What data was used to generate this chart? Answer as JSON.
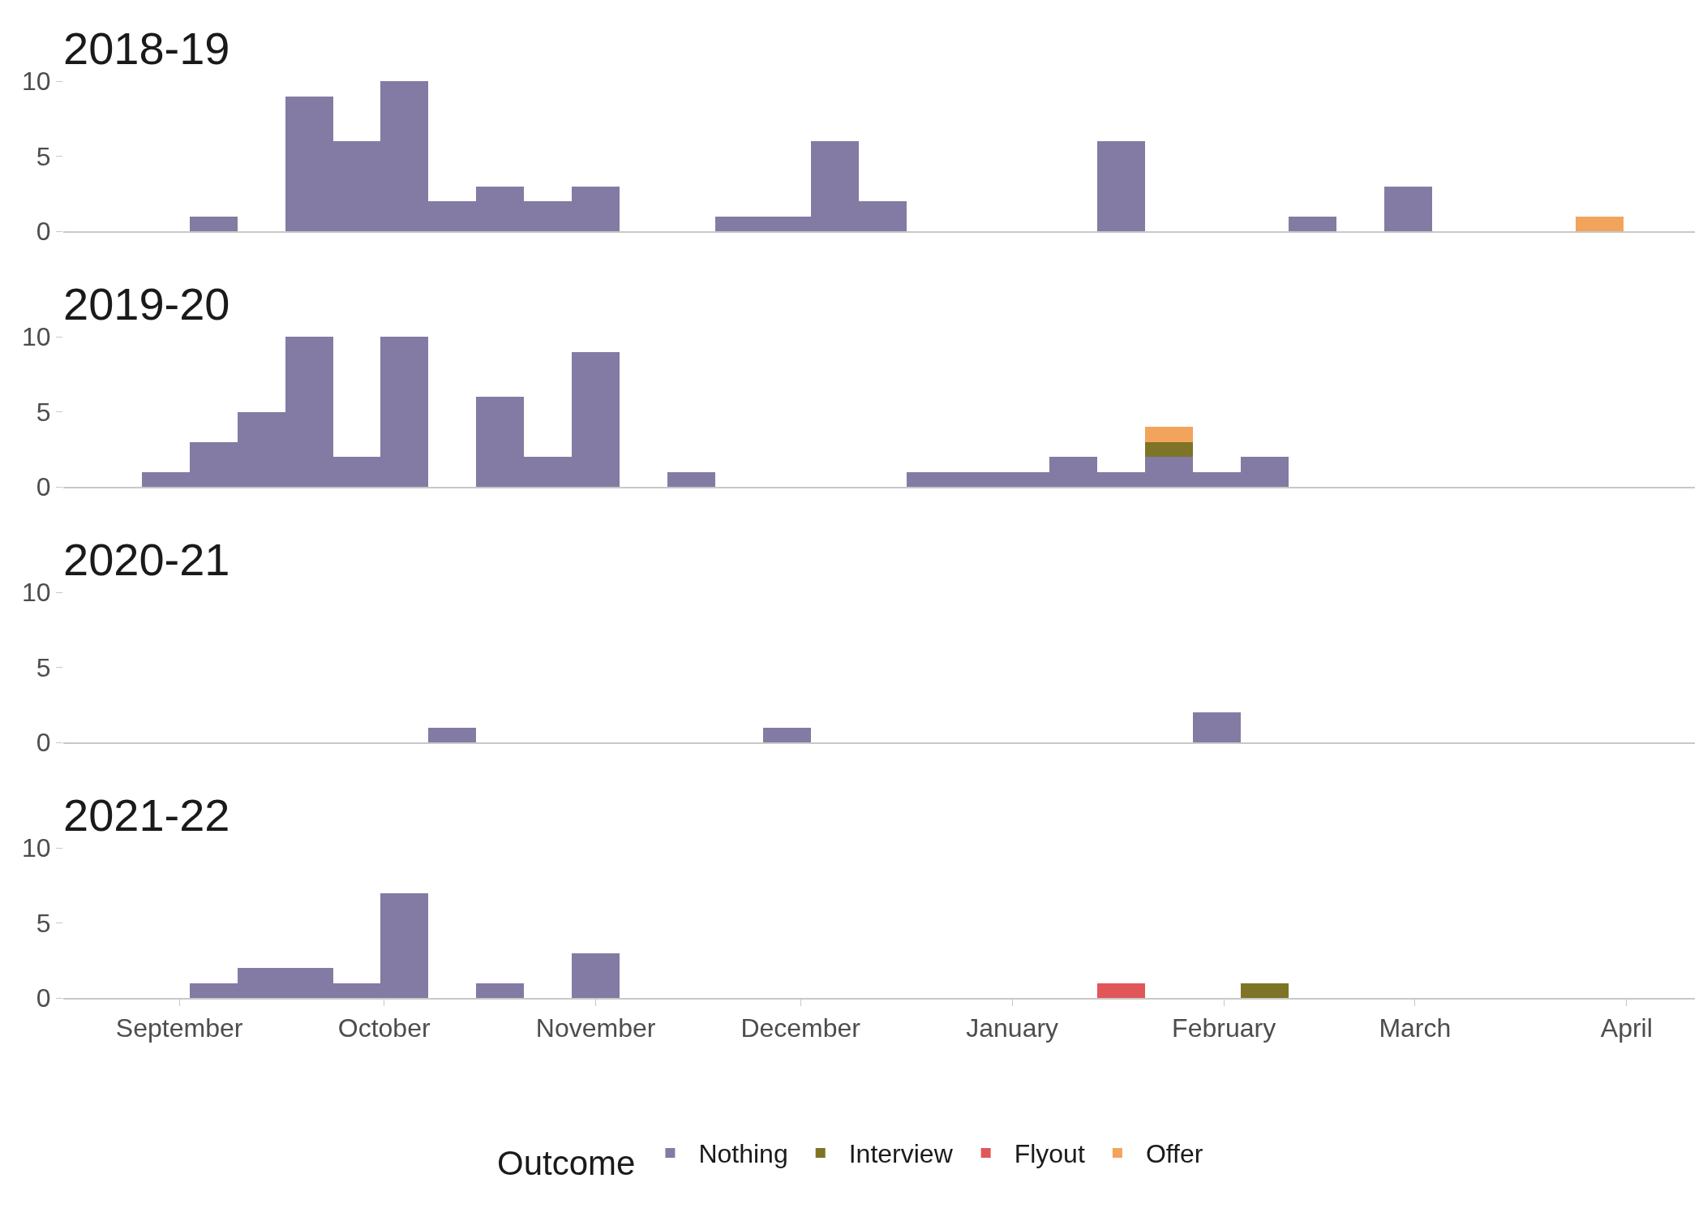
{
  "chart_data": [
    {
      "type": "bar",
      "title": "2018-19",
      "tick_labels": "y",
      "x": [
        "2018-08-30",
        "2018-09-06",
        "2018-09-13",
        "2018-09-20",
        "2018-09-27",
        "2018-10-04",
        "2018-10-11",
        "2018-10-18",
        "2018-10-25",
        "2018-11-01",
        "2018-11-08",
        "2018-11-15",
        "2018-11-22",
        "2018-11-29",
        "2018-12-06",
        "2018-12-13",
        "2018-12-20",
        "2018-12-27",
        "2019-01-03",
        "2019-01-10",
        "2019-01-17",
        "2019-01-24",
        "2019-01-31",
        "2019-02-07",
        "2019-02-14",
        "2019-02-21",
        "2019-02-28",
        "2019-03-07",
        "2019-03-14",
        "2019-03-21",
        "2019-03-28"
      ],
      "series": [
        {
          "color": "#837ba3",
          "values": [
            0,
            1,
            0,
            9,
            6,
            10,
            2,
            3,
            2,
            3,
            0,
            0,
            1,
            1,
            6,
            2,
            0,
            0,
            0,
            0,
            6,
            0,
            0,
            0,
            1,
            0,
            3,
            0,
            0,
            0,
            0
          ]
        },
        {
          "color": "#f3a45c",
          "values": [
            0,
            0,
            0,
            0,
            0,
            0,
            0,
            0,
            0,
            0,
            0,
            0,
            0,
            0,
            0,
            0,
            0,
            0,
            0,
            0,
            0,
            0,
            0,
            0,
            0,
            0,
            0,
            0,
            0,
            0,
            1
          ]
        }
      ],
      "xlim": [
        "2018-08-15",
        "2019-04-11"
      ],
      "ylim": [
        0,
        10
      ],
      "yticks": [
        0,
        5,
        10
      ]
    },
    {
      "type": "bar",
      "title": "2019-20",
      "stacked": true,
      "tick_labels": "y",
      "x": [
        "2018-08-30",
        "2018-09-06",
        "2018-09-13",
        "2018-09-20",
        "2018-09-27",
        "2018-10-04",
        "2018-10-11",
        "2018-10-18",
        "2018-10-25",
        "2018-11-01",
        "2018-11-08",
        "2018-11-15",
        "2018-11-22",
        "2018-11-29",
        "2018-12-06",
        "2018-12-13",
        "2018-12-20",
        "2018-12-27",
        "2019-01-03",
        "2019-01-10",
        "2019-01-17",
        "2019-01-24",
        "2019-01-31",
        "2019-02-07",
        "2019-02-14",
        "2019-02-21",
        "2019-02-28",
        "2019-03-07",
        "2019-03-14",
        "2019-03-21",
        "2019-03-28"
      ],
      "series": [
        {
          "color": "#837ba3",
          "values": [
            1,
            3,
            5,
            10,
            2,
            10,
            0,
            6,
            2,
            9,
            0,
            1,
            0,
            0,
            0,
            0,
            1,
            1,
            1,
            2,
            1,
            2,
            1,
            2,
            0,
            0,
            0,
            0,
            0,
            0,
            0
          ]
        },
        {
          "color": "#7d7428",
          "values": [
            0,
            0,
            0,
            0,
            0,
            0,
            0,
            0,
            0,
            0,
            0,
            0,
            0,
            0,
            0,
            0,
            0,
            0,
            0,
            0,
            0,
            1,
            0,
            0,
            0,
            0,
            0,
            0,
            0,
            0,
            0
          ]
        },
        {
          "color": "#f3a45c",
          "values": [
            0,
            0,
            0,
            0,
            0,
            0,
            0,
            0,
            0,
            0,
            0,
            0,
            0,
            0,
            0,
            0,
            0,
            0,
            0,
            0,
            0,
            1,
            0,
            0,
            0,
            0,
            0,
            0,
            0,
            0,
            0
          ]
        }
      ],
      "xlim": [
        "2018-08-15",
        "2019-04-11"
      ],
      "ylim": [
        0,
        10
      ],
      "yticks": [
        0,
        5,
        10
      ]
    },
    {
      "type": "bar",
      "title": "2020-21",
      "tick_labels": "y",
      "x": [
        "2018-08-30",
        "2018-09-06",
        "2018-09-13",
        "2018-09-20",
        "2018-09-27",
        "2018-10-04",
        "2018-10-11",
        "2018-10-18",
        "2018-10-25",
        "2018-11-01",
        "2018-11-08",
        "2018-11-15",
        "2018-11-22",
        "2018-11-29",
        "2018-12-06",
        "2018-12-13",
        "2018-12-20",
        "2018-12-27",
        "2019-01-03",
        "2019-01-10",
        "2019-01-17",
        "2019-01-24",
        "2019-01-31",
        "2019-02-07",
        "2019-02-14",
        "2019-02-21",
        "2019-02-28",
        "2019-03-07",
        "2019-03-14",
        "2019-03-21",
        "2019-03-28"
      ],
      "series": [
        {
          "color": "#837ba3",
          "values": [
            0,
            0,
            0,
            0,
            0,
            0,
            1,
            0,
            0,
            0,
            0,
            0,
            0,
            1,
            0,
            0,
            0,
            0,
            0,
            0,
            0,
            0,
            2,
            0,
            0,
            0,
            0,
            0,
            0,
            0,
            0
          ]
        }
      ],
      "xlim": [
        "2018-08-15",
        "2019-04-11"
      ],
      "ylim": [
        0,
        10
      ],
      "yticks": [
        0,
        5,
        10
      ]
    },
    {
      "type": "bar",
      "title": "2021-22",
      "legend": "bottom",
      "legend_title": "Outcome",
      "x": [
        "2018-08-30",
        "2018-09-06",
        "2018-09-13",
        "2018-09-20",
        "2018-09-27",
        "2018-10-04",
        "2018-10-11",
        "2018-10-18",
        "2018-10-25",
        "2018-11-01",
        "2018-11-08",
        "2018-11-15",
        "2018-11-22",
        "2018-11-29",
        "2018-12-06",
        "2018-12-13",
        "2018-12-20",
        "2018-12-27",
        "2019-01-03",
        "2019-01-10",
        "2019-01-17",
        "2019-01-24",
        "2019-01-31",
        "2019-02-07",
        "2019-02-14",
        "2019-02-21",
        "2019-02-28",
        "2019-03-07",
        "2019-03-14",
        "2019-03-21",
        "2019-03-28"
      ],
      "series": [
        {
          "name": "Nothing",
          "color": "#837ba3",
          "values": [
            0,
            1,
            2,
            2,
            1,
            7,
            0,
            1,
            0,
            3,
            0,
            0,
            0,
            0,
            0,
            0,
            0,
            0,
            0,
            0,
            0,
            0,
            0,
            0,
            0,
            0,
            0,
            0,
            0,
            0,
            0
          ]
        },
        {
          "name": "Interview",
          "color": "#7d7428",
          "values": [
            0,
            0,
            0,
            0,
            0,
            0,
            0,
            0,
            0,
            0,
            0,
            0,
            0,
            0,
            0,
            0,
            0,
            0,
            0,
            0,
            0,
            0,
            0,
            1,
            0,
            0,
            0,
            0,
            0,
            0,
            0
          ]
        },
        {
          "name": "Flyout",
          "color": "#e15759",
          "values": [
            0,
            0,
            0,
            0,
            0,
            0,
            0,
            0,
            0,
            0,
            0,
            0,
            0,
            0,
            0,
            0,
            0,
            0,
            0,
            0,
            1,
            0,
            0,
            0,
            0,
            0,
            0,
            0,
            0,
            0,
            0
          ]
        },
        {
          "name": "Offer",
          "color": "#f3a45c",
          "values": [
            0,
            0,
            0,
            0,
            0,
            0,
            0,
            0,
            0,
            0,
            0,
            0,
            0,
            0,
            0,
            0,
            0,
            0,
            0,
            0,
            0,
            0,
            0,
            0,
            0,
            0,
            0,
            0,
            0,
            0,
            0
          ]
        }
      ],
      "xlim": [
        "2018-08-15",
        "2019-04-11"
      ],
      "xticks": [
        {
          "value": "2018-09-01",
          "label": "September"
        },
        {
          "value": "2018-10-01",
          "label": "October"
        },
        {
          "value": "2018-11-01",
          "label": "November"
        },
        {
          "value": "2018-12-01",
          "label": "December"
        },
        {
          "value": "2019-01-01",
          "label": "January"
        },
        {
          "value": "2019-02-01",
          "label": "February"
        },
        {
          "value": "2019-03-01",
          "label": "March"
        },
        {
          "value": "2019-04-01",
          "label": "April"
        }
      ],
      "ylim": [
        0,
        10
      ],
      "yticks": [
        0,
        5,
        10
      ]
    }
  ]
}
